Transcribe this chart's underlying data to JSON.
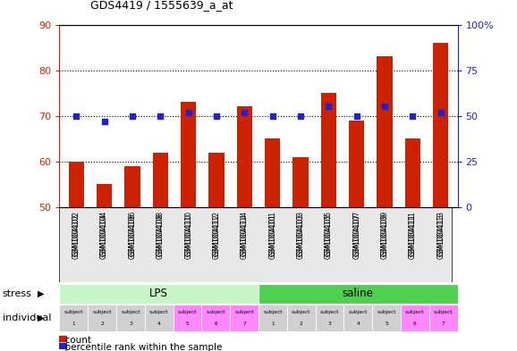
{
  "title": "GDS4419 / 1555639_a_at",
  "samples": [
    "GSM1004102",
    "GSM1004104",
    "GSM1004106",
    "GSM1004108",
    "GSM1004110",
    "GSM1004112",
    "GSM1004114",
    "GSM1004101",
    "GSM1004103",
    "GSM1004105",
    "GSM1004107",
    "GSM1004109",
    "GSM1004111",
    "GSM1004113"
  ],
  "counts": [
    60,
    55,
    59,
    62,
    73,
    62,
    72,
    65,
    61,
    75,
    69,
    83,
    65,
    86
  ],
  "percentile_ranks": [
    50,
    47,
    50,
    50,
    52,
    50,
    52,
    50,
    50,
    55,
    50,
    55,
    50,
    52
  ],
  "ylim_left": [
    50,
    90
  ],
  "ylim_right": [
    0,
    100
  ],
  "yticks_left": [
    50,
    60,
    70,
    80,
    90
  ],
  "yticks_right": [
    0,
    25,
    50,
    75,
    100
  ],
  "lps_color": "#c8f5c8",
  "saline_color": "#50d050",
  "subj_gray": "#d0d0d0",
  "subj_pink": "#ff88ff",
  "bar_color": "#cc2200",
  "dot_color": "#2222cc",
  "left_tick_color": "#cc2200",
  "right_tick_color": "#2222cc",
  "subject_colors": [
    "#d0d0d0",
    "#d0d0d0",
    "#d0d0d0",
    "#d0d0d0",
    "#ff88ff",
    "#ff88ff",
    "#ff88ff",
    "#d0d0d0",
    "#d0d0d0",
    "#d0d0d0",
    "#d0d0d0",
    "#d0d0d0",
    "#ff88ff",
    "#ff88ff"
  ]
}
